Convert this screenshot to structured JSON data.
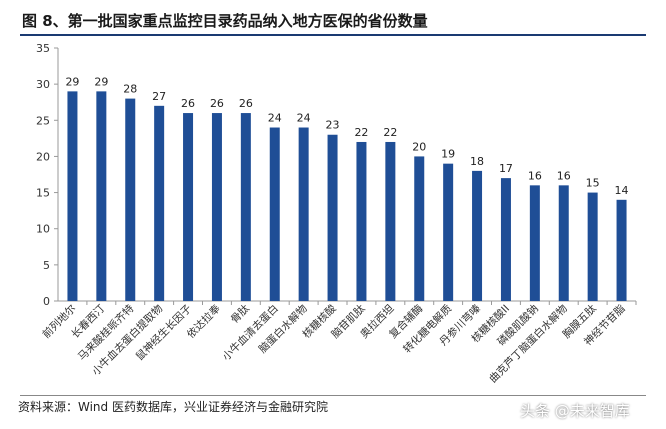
{
  "title": "图 8、第一批国家重点监控目录药品纳入地方医保的省份数量",
  "source": "资料来源：Wind 医药数据库，兴业证券经济与金融研究院",
  "watermark": "头条 @未来智库",
  "colors": {
    "bar": "#1f4e96",
    "title_rule": "#1a3a72",
    "axis": "#999999"
  },
  "chart_data": {
    "type": "bar",
    "categories": [
      "前列地尔",
      "长春西汀",
      "马来酸桂哌齐特",
      "小牛血去蛋白提取物",
      "鼠神经生长因子",
      "依达拉奉",
      "骨肽",
      "小牛血清去蛋白",
      "脑蛋白水解物",
      "核糖核酸",
      "脑苷肌肽",
      "奥拉西坦",
      "复合辅酶",
      "转化糖电解质",
      "丹参川芎嗪",
      "核糖核酸II",
      "磷酸肌酸钠",
      "曲克芦丁脑蛋白水解物",
      "胸腺五肽",
      "神经节苷脂"
    ],
    "values": [
      29,
      29,
      28,
      27,
      26,
      26,
      26,
      24,
      24,
      23,
      22,
      22,
      20,
      19,
      18,
      17,
      16,
      16,
      15,
      14
    ],
    "ylim": [
      0,
      35
    ],
    "yticks": [
      0,
      5,
      10,
      15,
      20,
      25,
      30,
      35
    ],
    "title": "",
    "xlabel": "",
    "ylabel": "",
    "grid": false,
    "legend": "none"
  }
}
